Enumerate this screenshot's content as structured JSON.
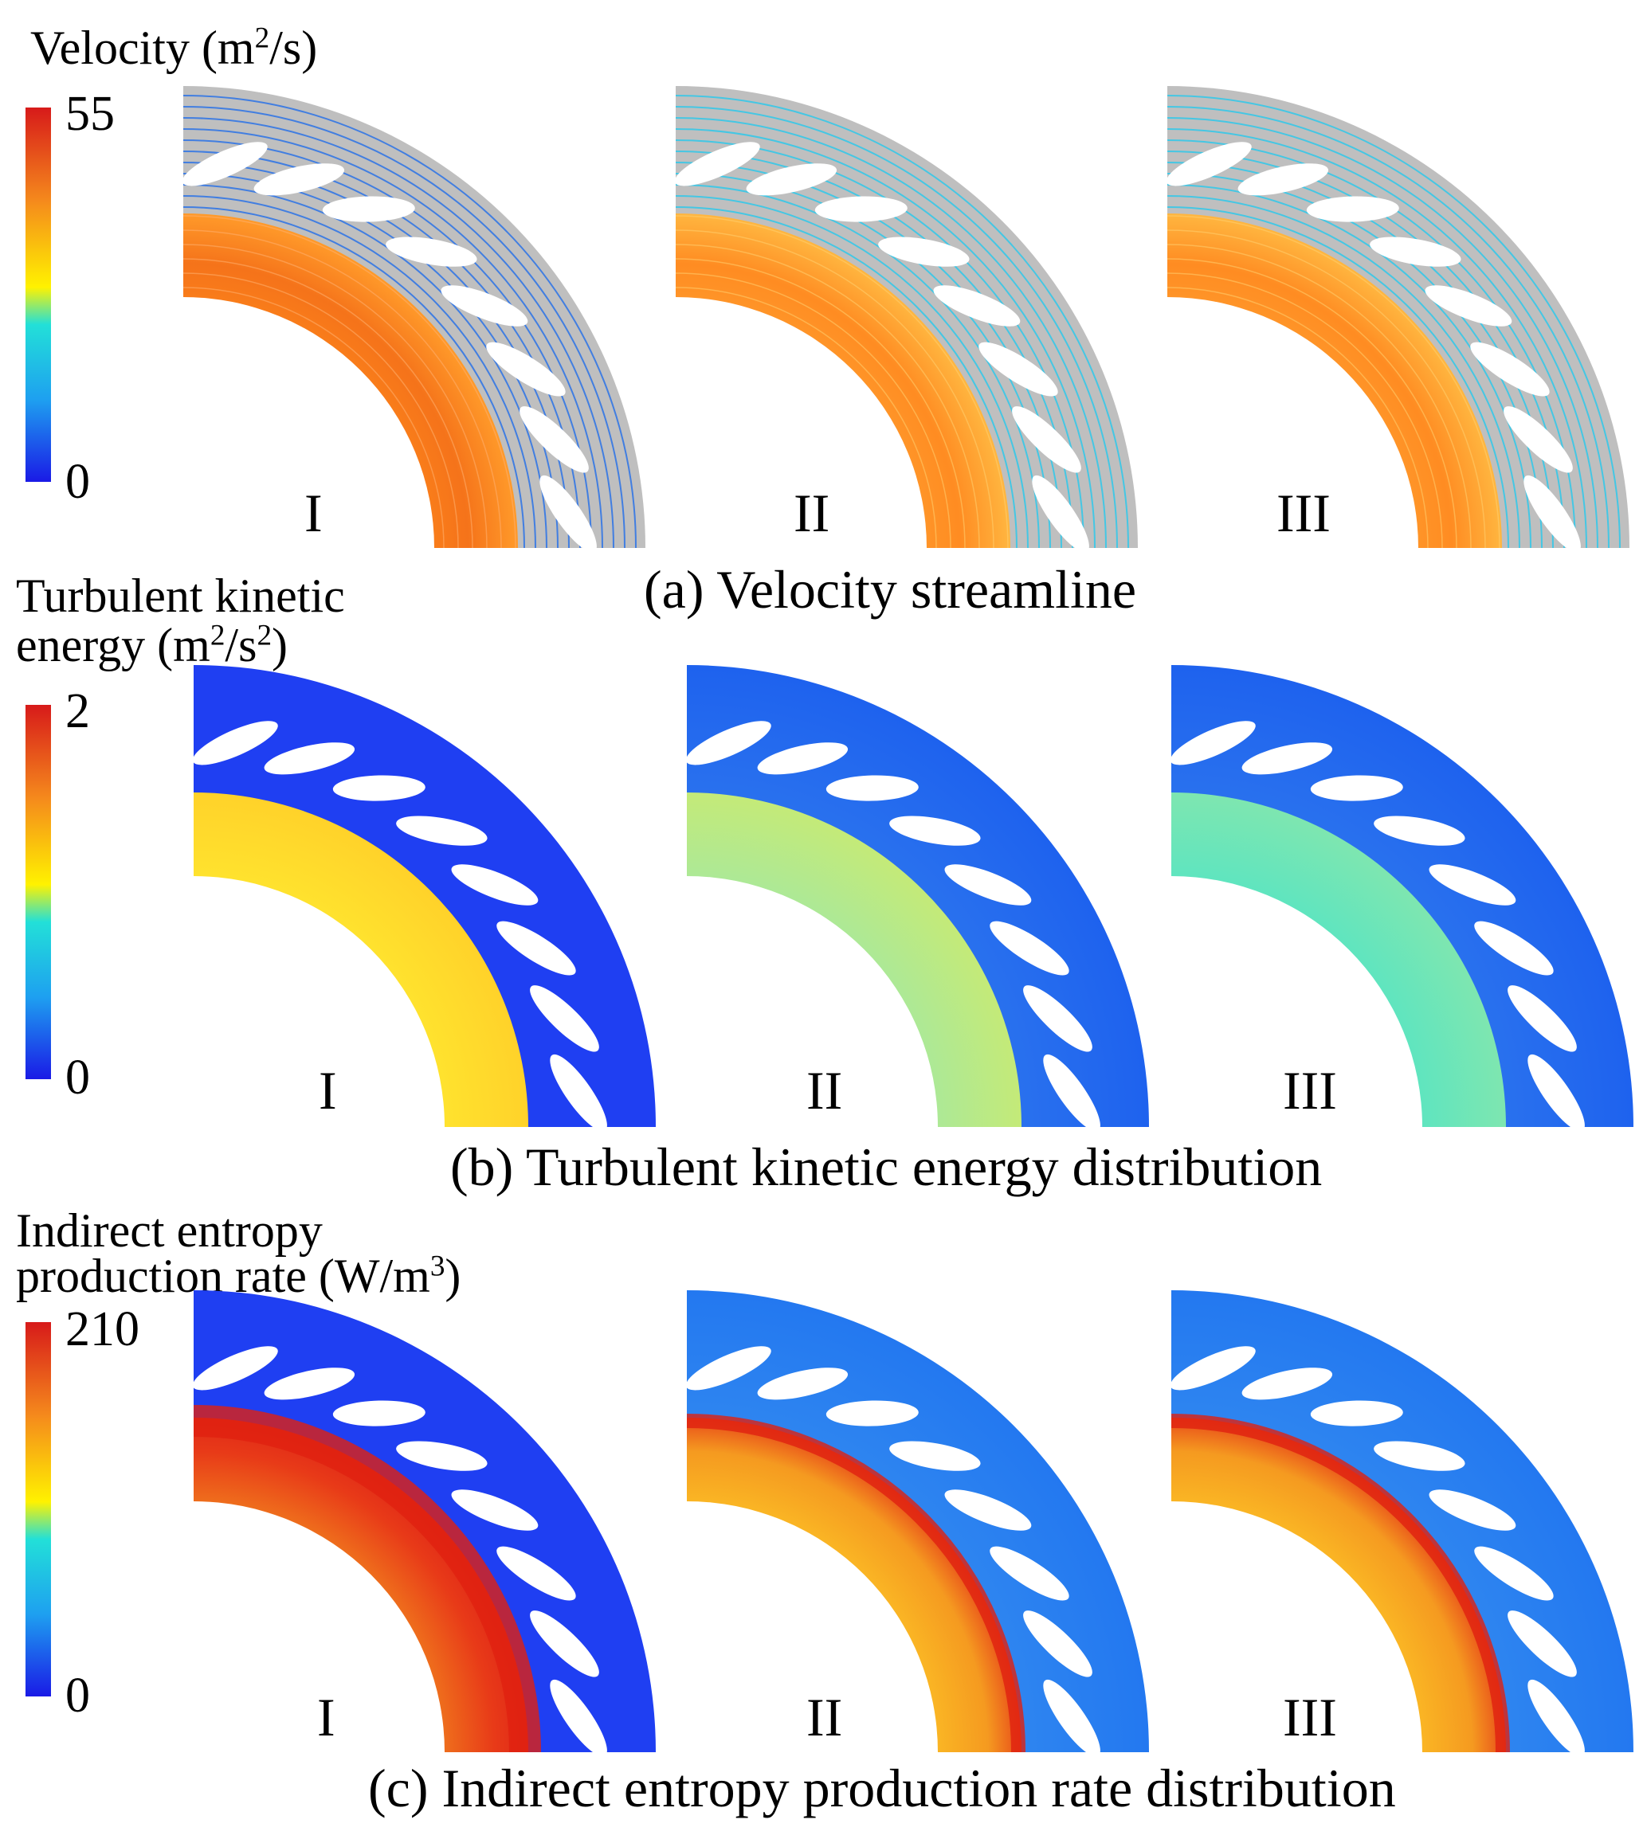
{
  "rows": [
    {
      "id": "velocity",
      "label_lines": [
        "Velocity (m",
        "2",
        "/s)"
      ],
      "unit_base": "Velocity (m",
      "unit_sup": "2",
      "unit_tail": "/s)",
      "max": "55",
      "min": "0",
      "caption": "(a) Velocity streamline",
      "panels": [
        "I",
        "II",
        "III"
      ]
    },
    {
      "id": "tke",
      "label_line1": "Turbulent kinetic",
      "unit_base": "energy (m",
      "unit_sup": "2",
      "unit_mid": "/s",
      "unit_sup2": "2",
      "unit_tail": ")",
      "max": "2",
      "min": "0",
      "caption": "(b) Turbulent kinetic energy distribution",
      "panels": [
        "I",
        "II",
        "III"
      ]
    },
    {
      "id": "entropy",
      "label_line1": "Indirect entropy",
      "unit_base": "production rate (W/m",
      "unit_sup": "3",
      "unit_tail": ")",
      "max": "210",
      "min": "0",
      "caption": "(c) Indirect entropy production rate distribution",
      "panels": [
        "I",
        "II",
        "III"
      ]
    }
  ],
  "colors": {
    "jet_top": "#d71a1a",
    "jet_orange": "#f58a1c",
    "jet_yellow": "#fff200",
    "jet_cyan": "#22e0d8",
    "jet_sky": "#1ea0f0",
    "jet_bottom": "#1a1ae6",
    "streamline_gray": "#bfbfbf",
    "blue_field": "#1f4ff0"
  }
}
